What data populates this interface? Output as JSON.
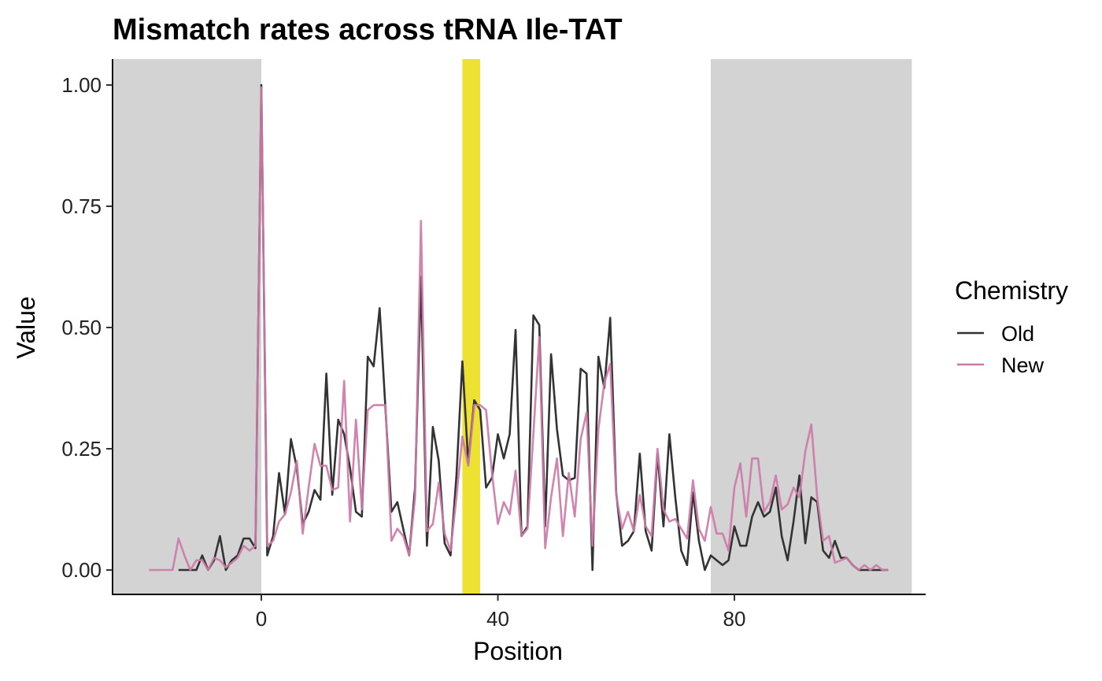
{
  "chart_data": {
    "type": "line",
    "title": "Mismatch rates across tRNA Ile-TAT",
    "xlabel": "Position",
    "ylabel": "Value",
    "xlim": [
      -25,
      112
    ],
    "ylim": [
      -0.05,
      1.05
    ],
    "x_ticks": [
      0,
      40,
      80
    ],
    "x_tick_labels": [
      "0",
      "40",
      "80"
    ],
    "y_ticks": [
      0,
      0.25,
      0.5,
      0.75,
      1
    ],
    "y_tick_labels": [
      "0.00",
      "0.25",
      "0.50",
      "0.75",
      "1.00"
    ],
    "grid": false,
    "legend": {
      "title": "Chemistry",
      "position": "right"
    },
    "shaded_regions": [
      {
        "x0": -25,
        "x1": 0,
        "color": "#d3d3d3"
      },
      {
        "x0": 76,
        "x1": 110,
        "color": "#d3d3d3"
      },
      {
        "x0": 34,
        "x1": 37,
        "color": "#ede131"
      }
    ],
    "series": [
      {
        "name": "Old",
        "color": "#333333",
        "x": [
          -14,
          -13,
          -12,
          -11,
          -10,
          -9,
          -8,
          -7,
          -6,
          -5,
          -4,
          -3,
          -2,
          -1,
          0,
          1,
          2,
          3,
          4,
          5,
          6,
          7,
          8,
          9,
          10,
          11,
          12,
          13,
          14,
          15,
          16,
          17,
          18,
          19,
          20,
          21,
          22,
          23,
          24,
          25,
          26,
          27,
          28,
          29,
          30,
          31,
          32,
          33,
          34,
          35,
          36,
          37,
          38,
          39,
          40,
          41,
          42,
          43,
          44,
          45,
          46,
          47,
          48,
          49,
          50,
          51,
          52,
          53,
          54,
          55,
          56,
          57,
          58,
          59,
          60,
          61,
          62,
          63,
          64,
          65,
          66,
          67,
          68,
          69,
          70,
          71,
          72,
          73,
          74,
          75,
          76,
          77,
          78,
          79,
          80,
          81,
          82,
          83,
          84,
          85,
          86,
          87,
          88,
          89,
          90,
          91,
          92,
          93,
          94,
          95,
          96,
          97,
          98,
          99,
          100,
          101,
          102,
          103,
          104,
          105,
          106
        ],
        "values": [
          0,
          0,
          0,
          0,
          0.03,
          0,
          0.02,
          0.07,
          0,
          0.02,
          0.03,
          0.065,
          0.065,
          0.045,
          1.0,
          0.03,
          0.07,
          0.2,
          0.115,
          0.27,
          0.21,
          0.095,
          0.12,
          0.165,
          0.145,
          0.405,
          0.155,
          0.31,
          0.28,
          0.21,
          0.12,
          0.11,
          0.44,
          0.42,
          0.54,
          0.33,
          0.12,
          0.14,
          0.085,
          0.03,
          0.17,
          0.605,
          0.05,
          0.295,
          0.225,
          0.055,
          0.03,
          0.195,
          0.43,
          0.22,
          0.35,
          0.33,
          0.17,
          0.19,
          0.28,
          0.23,
          0.28,
          0.495,
          0.07,
          0.09,
          0.525,
          0.505,
          0.09,
          0.445,
          0.29,
          0.195,
          0.185,
          0.19,
          0.415,
          0.405,
          0.0,
          0.44,
          0.375,
          0.52,
          0.16,
          0.05,
          0.06,
          0.08,
          0.24,
          0.08,
          0.04,
          0.24,
          0.09,
          0.28,
          0.15,
          0.04,
          0.01,
          0.16,
          0.06,
          0.0,
          0.03,
          0.02,
          0.01,
          0.02,
          0.09,
          0.05,
          0.05,
          0.11,
          0.14,
          0.11,
          0.12,
          0.17,
          0.07,
          0.02,
          0.1,
          0.195,
          0.055,
          0.15,
          0.14,
          0.04,
          0.025,
          0.06,
          0.025,
          0.025,
          0.01,
          0,
          0,
          0,
          0,
          0,
          0
        ]
      },
      {
        "name": "New",
        "color": "#cc79a7",
        "x": [
          -19,
          -18,
          -17,
          -16,
          -15,
          -14,
          -13,
          -12,
          -11,
          -10,
          -9,
          -8,
          -7,
          -6,
          -5,
          -4,
          -3,
          -2,
          -1,
          0,
          1,
          2,
          3,
          4,
          5,
          6,
          7,
          8,
          9,
          10,
          11,
          12,
          13,
          14,
          15,
          16,
          17,
          18,
          19,
          20,
          21,
          22,
          23,
          24,
          25,
          26,
          27,
          28,
          29,
          30,
          31,
          32,
          33,
          34,
          35,
          36,
          37,
          38,
          39,
          40,
          41,
          42,
          43,
          44,
          45,
          46,
          47,
          48,
          49,
          50,
          51,
          52,
          53,
          54,
          55,
          56,
          57,
          58,
          59,
          60,
          61,
          62,
          63,
          64,
          65,
          66,
          67,
          68,
          69,
          70,
          71,
          72,
          73,
          74,
          75,
          76,
          77,
          78,
          79,
          80,
          81,
          82,
          83,
          84,
          85,
          86,
          87,
          88,
          89,
          90,
          91,
          92,
          93,
          94,
          95,
          96,
          97,
          98,
          99,
          100,
          101,
          102,
          103,
          104,
          105,
          106
        ],
        "values": [
          0,
          0,
          0,
          0,
          0,
          0.065,
          0.03,
          0,
          0.02,
          0.02,
          0,
          0.025,
          0.02,
          0.005,
          0.015,
          0.025,
          0.05,
          0.04,
          0.05,
          0.995,
          0.05,
          0.06,
          0.1,
          0.115,
          0.16,
          0.225,
          0.075,
          0.17,
          0.26,
          0.215,
          0.215,
          0.165,
          0.17,
          0.39,
          0.1,
          0.31,
          0.125,
          0.33,
          0.34,
          0.34,
          0.34,
          0.06,
          0.085,
          0.07,
          0.03,
          0.15,
          0.72,
          0.08,
          0.095,
          0.18,
          0.075,
          0.04,
          0.15,
          0.275,
          0.215,
          0.34,
          0.34,
          0.33,
          0.2,
          0.095,
          0.14,
          0.115,
          0.205,
          0.07,
          0.085,
          0.28,
          0.48,
          0.045,
          0.15,
          0.23,
          0.07,
          0.2,
          0.11,
          0.27,
          0.325,
          0.05,
          0.29,
          0.385,
          0.425,
          0.155,
          0.085,
          0.12,
          0.08,
          0.155,
          0.09,
          0.07,
          0.25,
          0.125,
          0.1,
          0.105,
          0.085,
          0.065,
          0.185,
          0.085,
          0.06,
          0.13,
          0.075,
          0.075,
          0.04,
          0.17,
          0.22,
          0.11,
          0.23,
          0.23,
          0.12,
          0.14,
          0.195,
          0.125,
          0.135,
          0.17,
          0.15,
          0.245,
          0.3,
          0.15,
          0.06,
          0.07,
          0.015,
          0.02,
          0.025,
          0.01,
          0.0,
          0.01,
          0,
          0.01,
          0,
          0
        ]
      }
    ]
  }
}
